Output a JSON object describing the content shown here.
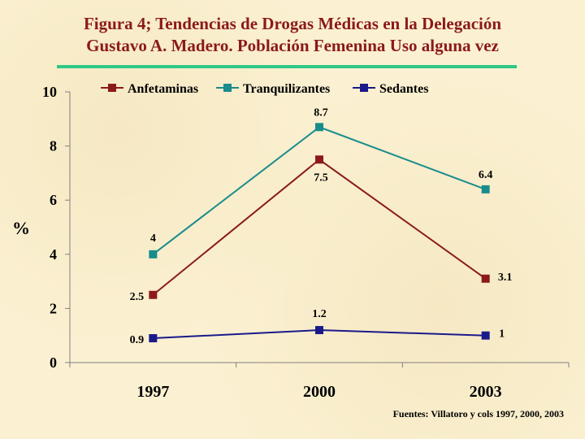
{
  "title": "Figura 4; Tendencias de Drogas Médicas en  la Delegación Gustavo A. Madero. Población Femenina Uso alguna vez",
  "title_line1": "Figura 4; Tendencias de Drogas Médicas en  la Delegación",
  "title_line2": "Gustavo A. Madero. Población Femenina Uso alguna vez",
  "source": "Fuentes: Villatoro y cols 1997, 2000, 2003",
  "colors": {
    "title": "#8b1a1a",
    "rule": "#2ec886"
  },
  "chart_data": {
    "type": "line",
    "ylabel": "%",
    "xlabel": "",
    "categories": [
      "1997",
      "2000",
      "2003"
    ],
    "ylim": [
      0,
      10
    ],
    "yticks": [
      0,
      2,
      4,
      6,
      8,
      10
    ],
    "grid": false,
    "legend": "top",
    "series": [
      {
        "name": "Anfetaminas",
        "values": [
          2.5,
          7.5,
          3.1
        ],
        "labels": [
          "2.5",
          "7.5",
          "3.1"
        ],
        "color": "#8b1a1a"
      },
      {
        "name": "Tranquilizantes",
        "values": [
          4,
          8.7,
          6.4
        ],
        "labels": [
          "4",
          "8.7",
          "6.4"
        ],
        "color": "#1a8c8c"
      },
      {
        "name": "Sedantes",
        "values": [
          0.9,
          1.2,
          1
        ],
        "labels": [
          "0.9",
          "1.2",
          "1"
        ],
        "color": "#1a1a8b"
      }
    ]
  }
}
